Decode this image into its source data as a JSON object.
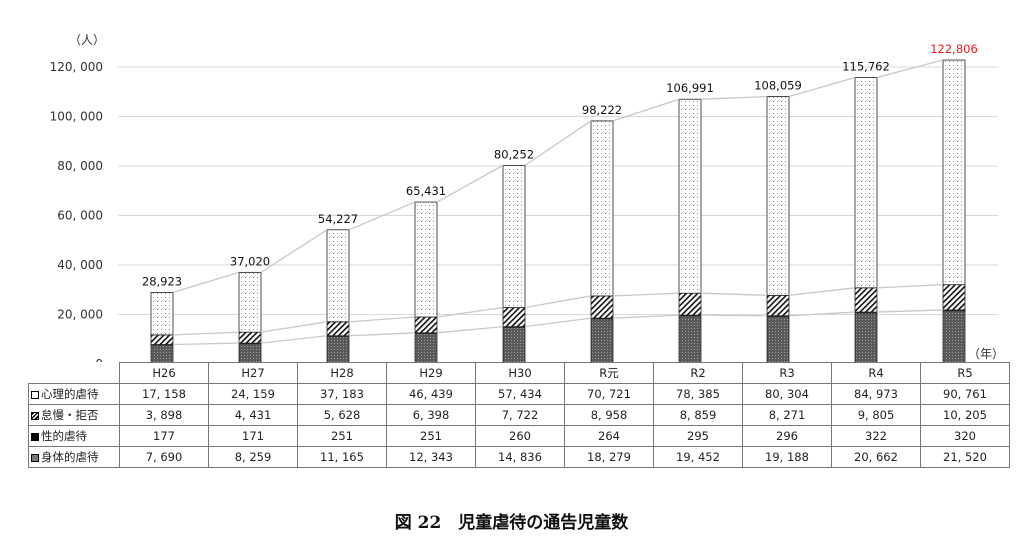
{
  "caption": "図 22　児童虐待の通告児童数",
  "y_unit": "（人）",
  "x_unit": "（年）",
  "colors": {
    "highlight_total": "#e0201c",
    "line": "#c8c8c8",
    "grid": "#d9d9d9"
  },
  "chart_data": {
    "type": "bar",
    "stacked": true,
    "categories": [
      "H26",
      "H27",
      "H28",
      "H29",
      "H30",
      "R元",
      "R2",
      "R3",
      "R4",
      "R5"
    ],
    "ylim": [
      0,
      120000
    ],
    "y_ticks": [
      "0",
      "20, 000",
      "40, 000",
      "60, 000",
      "80, 000",
      "100, 000",
      "120, 000"
    ],
    "grid": true,
    "series": [
      {
        "name": "身体的虐待",
        "pattern": "dark-gray",
        "values": [
          7690,
          8259,
          11165,
          12343,
          14836,
          18279,
          19452,
          19188,
          20662,
          21520
        ],
        "display": [
          "7, 690",
          "8, 259",
          "11, 165",
          "12, 343",
          "14, 836",
          "18, 279",
          "19, 452",
          "19, 188",
          "20, 662",
          "21, 520"
        ]
      },
      {
        "name": "性的虐待",
        "pattern": "black",
        "values": [
          177,
          171,
          251,
          251,
          260,
          264,
          295,
          296,
          322,
          320
        ],
        "display": [
          "177",
          "171",
          "251",
          "251",
          "260",
          "264",
          "295",
          "296",
          "322",
          "320"
        ]
      },
      {
        "name": "怠慢・拒否",
        "pattern": "hatch",
        "values": [
          3898,
          4431,
          5628,
          6398,
          7722,
          8958,
          8859,
          8271,
          9805,
          10205
        ],
        "display": [
          "3, 898",
          "4, 431",
          "5, 628",
          "6, 398",
          "7, 722",
          "8, 958",
          "8, 859",
          "8, 271",
          "9, 805",
          "10, 205"
        ]
      },
      {
        "name": "心理的虐待",
        "pattern": "dotted",
        "values": [
          17158,
          24159,
          37183,
          46439,
          57434,
          70721,
          78385,
          80304,
          84973,
          90761
        ],
        "display": [
          "17, 158",
          "24, 159",
          "37, 183",
          "46, 439",
          "57, 434",
          "70, 721",
          "78, 385",
          "80, 304",
          "84, 973",
          "90, 761"
        ]
      }
    ],
    "totals": [
      28923,
      37020,
      54227,
      65431,
      80252,
      98222,
      106991,
      108059,
      115762,
      122806
    ],
    "totals_display": [
      "28,923",
      "37,020",
      "54,227",
      "65,431",
      "80,252",
      "98,222",
      "106,991",
      "108,059",
      "115,762",
      "122,806"
    ],
    "table_row_order": [
      "心理的虐待",
      "怠慢・拒否",
      "性的虐待",
      "身体的虐待"
    ]
  }
}
